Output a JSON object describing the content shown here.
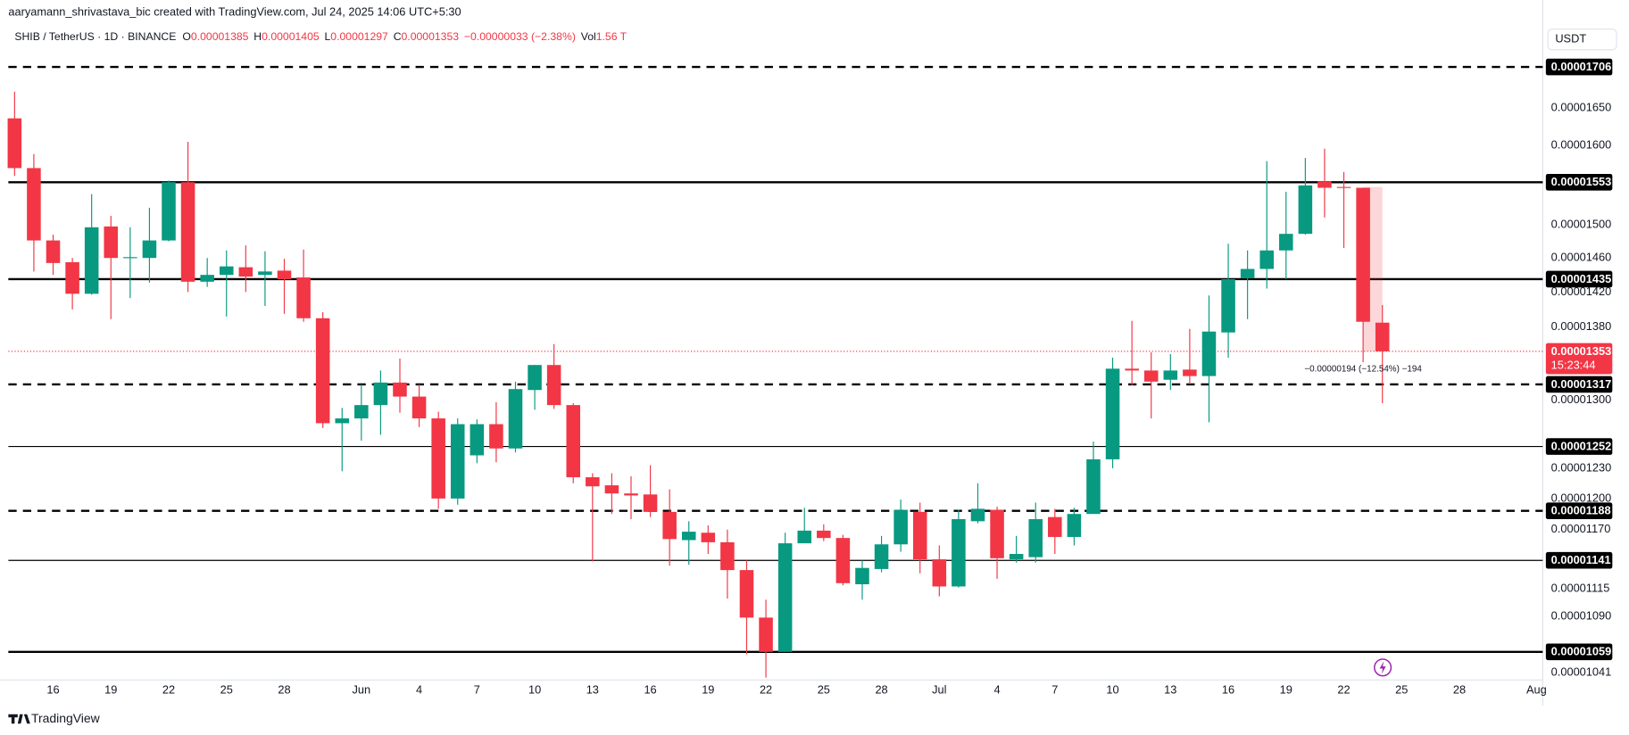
{
  "header": {
    "author_line": "aaryamann_shrivastava_bic created with TradingView.com, Jul 24, 2025 14:06 UTC+5:30",
    "symbol": "SHIB / TetherUS · 1D · BINANCE",
    "ohlc": [
      {
        "key": "O",
        "value": "0.00001385"
      },
      {
        "key": "H",
        "value": "0.00001405"
      },
      {
        "key": "L",
        "value": "0.00001297"
      },
      {
        "key": "C",
        "value": "0.00001353"
      }
    ],
    "change": "−0.00000033 (−2.38%)",
    "vol_key": "Vol",
    "vol": "1.56 T"
  },
  "currency": "USDT",
  "brand": "TradingView",
  "chart_data": {
    "type": "candlestick",
    "log_scale": true,
    "grid": false,
    "up_color": "#089981",
    "down_color": "#f23645",
    "x": [
      "2025-05-14",
      "2025-05-15",
      "2025-05-16",
      "2025-05-17",
      "2025-05-18",
      "2025-05-19",
      "2025-05-20",
      "2025-05-21",
      "2025-05-22",
      "2025-05-23",
      "2025-05-24",
      "2025-05-25",
      "2025-05-26",
      "2025-05-27",
      "2025-05-28",
      "2025-05-29",
      "2025-05-30",
      "2025-05-31",
      "2025-06-01",
      "2025-06-02",
      "2025-06-03",
      "2025-06-04",
      "2025-06-05",
      "2025-06-06",
      "2025-06-07",
      "2025-06-08",
      "2025-06-09",
      "2025-06-10",
      "2025-06-11",
      "2025-06-12",
      "2025-06-13",
      "2025-06-14",
      "2025-06-15",
      "2025-06-16",
      "2025-06-17",
      "2025-06-18",
      "2025-06-19",
      "2025-06-20",
      "2025-06-21",
      "2025-06-22",
      "2025-06-23",
      "2025-06-24",
      "2025-06-25",
      "2025-06-26",
      "2025-06-27",
      "2025-06-28",
      "2025-06-29",
      "2025-06-30",
      "2025-07-01",
      "2025-07-02",
      "2025-07-03",
      "2025-07-04",
      "2025-07-05",
      "2025-07-06",
      "2025-07-07",
      "2025-07-08",
      "2025-07-09",
      "2025-07-10",
      "2025-07-11",
      "2025-07-12",
      "2025-07-13",
      "2025-07-14",
      "2025-07-15",
      "2025-07-16",
      "2025-07-17",
      "2025-07-18",
      "2025-07-19",
      "2025-07-20",
      "2025-07-21",
      "2025-07-22",
      "2025-07-23",
      "2025-07-24"
    ],
    "open": [
      1.636e-05,
      1.571e-05,
      1.481e-05,
      1.455e-05,
      1.418e-05,
      1.498e-05,
      1.46e-05,
      1.46e-05,
      1.481e-05,
      1.553e-05,
      1.432e-05,
      1.44e-05,
      1.449e-05,
      1.44e-05,
      1.445e-05,
      1.437e-05,
      1.39e-05,
      1.276e-05,
      1.281e-05,
      1.295e-05,
      1.319e-05,
      1.304e-05,
      1.281e-05,
      1.2e-05,
      1.243e-05,
      1.275e-05,
      1.25e-05,
      1.311e-05,
      1.338e-05,
      1.295e-05,
      1.221e-05,
      1.213e-05,
      1.205e-05,
      1.204e-05,
      1.187e-05,
      1.16e-05,
      1.167e-05,
      1.158e-05,
      1.132e-05,
      1.089e-05,
      1.059e-05,
      1.157e-05,
      1.169e-05,
      1.162e-05,
      1.119e-05,
      1.133e-05,
      1.156e-05,
      1.187e-05,
      1.142e-05,
      1.117e-05,
      1.178e-05,
      1.189e-05,
      1.142e-05,
      1.144e-05,
      1.182e-05,
      1.163e-05,
      1.185e-05,
      1.239e-05,
      1.334e-05,
      1.332e-05,
      1.322e-05,
      1.333e-05,
      1.326e-05,
      1.374e-05,
      1.436e-05,
      1.447e-05,
      1.469e-05,
      1.489e-05,
      1.554e-05,
      1.547e-05,
      1.546e-05,
      1.385e-05
    ],
    "high": [
      1.672e-05,
      1.589e-05,
      1.488e-05,
      1.46e-05,
      1.538e-05,
      1.511e-05,
      1.497e-05,
      1.521e-05,
      1.555e-05,
      1.605e-05,
      1.46e-05,
      1.469e-05,
      1.475e-05,
      1.468e-05,
      1.459e-05,
      1.47e-05,
      1.397e-05,
      1.292e-05,
      1.317e-05,
      1.332e-05,
      1.345e-05,
      1.317e-05,
      1.288e-05,
      1.281e-05,
      1.28e-05,
      1.298e-05,
      1.32e-05,
      1.338e-05,
      1.361e-05,
      1.297e-05,
      1.225e-05,
      1.225e-05,
      1.222e-05,
      1.233e-05,
      1.209e-05,
      1.178e-05,
      1.174e-05,
      1.17e-05,
      1.141e-05,
      1.105e-05,
      1.167e-05,
      1.191e-05,
      1.175e-05,
      1.165e-05,
      1.141e-05,
      1.164e-05,
      1.199e-05,
      1.196e-05,
      1.155e-05,
      1.189e-05,
      1.215e-05,
      1.192e-05,
      1.164e-05,
      1.196e-05,
      1.19e-05,
      1.191e-05,
      1.257e-05,
      1.346e-05,
      1.387e-05,
      1.352e-05,
      1.35e-05,
      1.378e-05,
      1.416e-05,
      1.477e-05,
      1.469e-05,
      1.58e-05,
      1.541e-05,
      1.584e-05,
      1.596e-05,
      1.566e-05,
      1.546e-05,
      1.405e-05
    ],
    "low": [
      1.561e-05,
      1.444e-05,
      1.44e-05,
      1.4e-05,
      1.417e-05,
      1.389e-05,
      1.413e-05,
      1.431e-05,
      1.48e-05,
      1.42e-05,
      1.426e-05,
      1.392e-05,
      1.42e-05,
      1.404e-05,
      1.395e-05,
      1.386e-05,
      1.271e-05,
      1.227e-05,
      1.258e-05,
      1.264e-05,
      1.287e-05,
      1.272e-05,
      1.19e-05,
      1.194e-05,
      1.235e-05,
      1.236e-05,
      1.246e-05,
      1.29e-05,
      1.291e-05,
      1.215e-05,
      1.14e-05,
      1.185e-05,
      1.18e-05,
      1.182e-05,
      1.136e-05,
      1.137e-05,
      1.147e-05,
      1.106e-05,
      1.057e-05,
      1.037e-05,
      1.059e-05,
      1.158e-05,
      1.159e-05,
      1.118e-05,
      1.105e-05,
      1.13e-05,
      1.149e-05,
      1.129e-05,
      1.108e-05,
      1.116e-05,
      1.176e-05,
      1.124e-05,
      1.139e-05,
      1.139e-05,
      1.147e-05,
      1.155e-05,
      1.185e-05,
      1.23e-05,
      1.316e-05,
      1.281e-05,
      1.311e-05,
      1.317e-05,
      1.277e-05,
      1.346e-05,
      1.389e-05,
      1.424e-05,
      1.435e-05,
      1.488e-05,
      1.509e-05,
      1.472e-05,
      1.341e-05,
      1.297e-05
    ],
    "close": [
      1.571e-05,
      1.481e-05,
      1.454e-05,
      1.418e-05,
      1.497e-05,
      1.46e-05,
      1.461e-05,
      1.481e-05,
      1.553e-05,
      1.432e-05,
      1.44e-05,
      1.45e-05,
      1.438e-05,
      1.444e-05,
      1.435e-05,
      1.39e-05,
      1.276e-05,
      1.281e-05,
      1.295e-05,
      1.319e-05,
      1.304e-05,
      1.281e-05,
      1.2e-05,
      1.275e-05,
      1.275e-05,
      1.25e-05,
      1.312e-05,
      1.338e-05,
      1.295e-05,
      1.221e-05,
      1.212e-05,
      1.205e-05,
      1.203e-05,
      1.187e-05,
      1.161e-05,
      1.168e-05,
      1.158e-05,
      1.132e-05,
      1.089e-05,
      1.059e-05,
      1.157e-05,
      1.169e-05,
      1.162e-05,
      1.12e-05,
      1.134e-05,
      1.156e-05,
      1.189e-05,
      1.142e-05,
      1.117e-05,
      1.18e-05,
      1.19e-05,
      1.143e-05,
      1.147e-05,
      1.18e-05,
      1.163e-05,
      1.185e-05,
      1.239e-05,
      1.334e-05,
      1.332e-05,
      1.32e-05,
      1.332e-05,
      1.326e-05,
      1.375e-05,
      1.435e-05,
      1.447e-05,
      1.469e-05,
      1.489e-05,
      1.549e-05,
      1.546e-05,
      1.546e-05,
      1.386e-05,
      1.353e-05
    ],
    "xlim": [
      "2025-05-14",
      "2025-08-01"
    ],
    "xticks": [
      {
        "value": "2025-05-16",
        "label": "16"
      },
      {
        "value": "2025-05-19",
        "label": "19"
      },
      {
        "value": "2025-05-22",
        "label": "22"
      },
      {
        "value": "2025-05-25",
        "label": "25"
      },
      {
        "value": "2025-05-28",
        "label": "28"
      },
      {
        "value": "2025-06-01",
        "label": "Jun"
      },
      {
        "value": "2025-06-04",
        "label": "4"
      },
      {
        "value": "2025-06-07",
        "label": "7"
      },
      {
        "value": "2025-06-10",
        "label": "10"
      },
      {
        "value": "2025-06-13",
        "label": "13"
      },
      {
        "value": "2025-06-16",
        "label": "16"
      },
      {
        "value": "2025-06-19",
        "label": "19"
      },
      {
        "value": "2025-06-22",
        "label": "22"
      },
      {
        "value": "2025-06-25",
        "label": "25"
      },
      {
        "value": "2025-06-28",
        "label": "28"
      },
      {
        "value": "2025-07-01",
        "label": "Jul"
      },
      {
        "value": "2025-07-04",
        "label": "4"
      },
      {
        "value": "2025-07-07",
        "label": "7"
      },
      {
        "value": "2025-07-10",
        "label": "10"
      },
      {
        "value": "2025-07-13",
        "label": "13"
      },
      {
        "value": "2025-07-16",
        "label": "16"
      },
      {
        "value": "2025-07-19",
        "label": "19"
      },
      {
        "value": "2025-07-22",
        "label": "22"
      },
      {
        "value": "2025-07-25",
        "label": "25"
      },
      {
        "value": "2025-07-28",
        "label": "28"
      },
      {
        "value": "2025-08-01",
        "label": "Aug"
      }
    ],
    "ylim": [
      1.035e-05,
      1.764e-05
    ],
    "yticks": [
      {
        "value": 1.65e-05,
        "label": "0.00001650"
      },
      {
        "value": 1.6e-05,
        "label": "0.00001600"
      },
      {
        "value": 1.5e-05,
        "label": "0.00001500"
      },
      {
        "value": 1.46e-05,
        "label": "0.00001460"
      },
      {
        "value": 1.42e-05,
        "label": "0.00001420"
      },
      {
        "value": 1.38e-05,
        "label": "0.00001380"
      },
      {
        "value": 1.3e-05,
        "label": "0.00001300"
      },
      {
        "value": 1.23e-05,
        "label": "0.00001230"
      },
      {
        "value": 1.2e-05,
        "label": "0.00001200"
      },
      {
        "value": 1.17e-05,
        "label": "0.00001170"
      },
      {
        "value": 1.115e-05,
        "label": "0.00001115"
      },
      {
        "value": 1.09e-05,
        "label": "0.00001090"
      },
      {
        "value": 1.041e-05,
        "label": "0.00001041"
      }
    ],
    "levels": [
      {
        "value": 1.706e-05,
        "label": "0.00001706",
        "style": "dashed"
      },
      {
        "value": 1.553e-05,
        "label": "0.00001553",
        "style": "solid"
      },
      {
        "value": 1.435e-05,
        "label": "0.00001435",
        "style": "solid"
      },
      {
        "value": 1.317e-05,
        "label": "0.00001317",
        "style": "dashed"
      },
      {
        "value": 1.252e-05,
        "label": "0.00001252",
        "style": "thin"
      },
      {
        "value": 1.188e-05,
        "label": "0.00001188",
        "style": "dashed"
      },
      {
        "value": 1.141e-05,
        "label": "0.00001141",
        "style": "thin"
      },
      {
        "value": 1.059e-05,
        "label": "0.00001059",
        "style": "solid"
      }
    ],
    "last_price": {
      "value": 1.353e-05,
      "label": "0.00001353",
      "countdown": "15:23:44",
      "color": "#f23645"
    },
    "measurement": {
      "from": 1.547e-05,
      "to": 1.353e-05,
      "x": "2025-07-23",
      "label": "−0.00000194 (−12.54%) −194"
    }
  }
}
